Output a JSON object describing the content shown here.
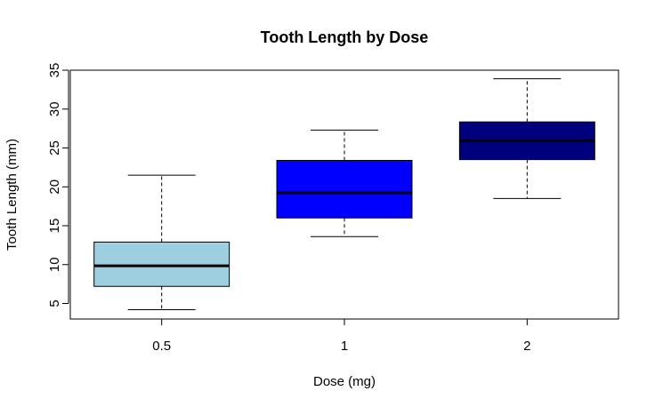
{
  "chart_data": {
    "type": "boxplot",
    "title": "Tooth Length by Dose",
    "xlabel": "Dose (mg)",
    "ylabel": "Tooth Length (mm)",
    "ylim": [
      3,
      35
    ],
    "yticks": [
      5,
      10,
      15,
      20,
      25,
      30,
      35
    ],
    "grid": false,
    "legend": "none",
    "categories": [
      "0.5",
      "1",
      "2"
    ],
    "boxes": [
      {
        "category": "0.5",
        "min": 4.2,
        "q1": 7.2,
        "median": 9.85,
        "q3": 12.9,
        "max": 21.5,
        "color": "#9ecfe0"
      },
      {
        "category": "1",
        "min": 13.6,
        "q1": 16.0,
        "median": 19.25,
        "q3": 23.4,
        "max": 27.3,
        "color": "#0000ff"
      },
      {
        "category": "2",
        "min": 18.5,
        "q1": 23.5,
        "median": 25.95,
        "q3": 28.35,
        "max": 33.9,
        "color": "#00007f"
      }
    ]
  }
}
